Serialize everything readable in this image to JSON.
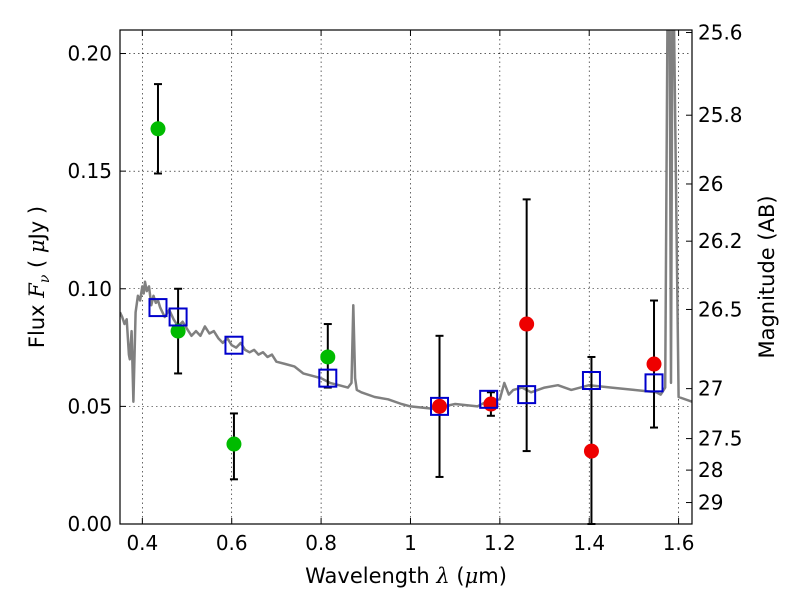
{
  "chart_data": {
    "type": "scatter",
    "xlabel_text": "Wavelength",
    "xlabel_symbol": "λ",
    "xlabel_unit_prefix": "(",
    "xlabel_unit_mu": "μ",
    "xlabel_unit_suffix": "m)",
    "ylabel_text": "Flux",
    "ylabel_symbol": "F",
    "ylabel_subscript": "ν",
    "ylabel_unit_prefix": "(",
    "ylabel_unit_mu": "μ",
    "ylabel_unit_suffix": "Jy )",
    "y2label": "Magnitude (AB)",
    "xlim": [
      0.35,
      1.63
    ],
    "ylim": [
      0.0,
      0.21
    ],
    "grid": true,
    "x_ticks": [
      {
        "value": 0.4,
        "label": "0.4"
      },
      {
        "value": 0.6,
        "label": "0.6"
      },
      {
        "value": 0.8,
        "label": "0.8"
      },
      {
        "value": 1.0,
        "label": "1"
      },
      {
        "value": 1.2,
        "label": "1.2"
      },
      {
        "value": 1.4,
        "label": "1.4"
      },
      {
        "value": 1.6,
        "label": "1.6"
      }
    ],
    "y_ticks": [
      {
        "value": 0.0,
        "label": "0.00"
      },
      {
        "value": 0.05,
        "label": "0.05"
      },
      {
        "value": 0.1,
        "label": "0.10"
      },
      {
        "value": 0.15,
        "label": "0.15"
      },
      {
        "value": 0.2,
        "label": "0.20"
      }
    ],
    "y2_ticks": [
      {
        "value": 25.6,
        "label": "25.6"
      },
      {
        "value": 25.8,
        "label": "25.8"
      },
      {
        "value": 26.0,
        "label": "26"
      },
      {
        "value": 26.2,
        "label": "26.2"
      },
      {
        "value": 26.5,
        "label": "26.5"
      },
      {
        "value": 27.0,
        "label": "27"
      },
      {
        "value": 27.5,
        "label": "27.5"
      },
      {
        "value": 28.0,
        "label": "28"
      },
      {
        "value": 29.0,
        "label": "29"
      }
    ],
    "series": [
      {
        "marker": "filled-circle",
        "color": "#00bb00",
        "x": [
          0.435,
          0.48,
          0.605,
          0.815
        ],
        "y": [
          0.168,
          0.082,
          0.034,
          0.071
        ],
        "yerr_low": [
          0.149,
          0.064,
          0.019,
          0.058
        ],
        "yerr_high": [
          0.187,
          0.1,
          0.047,
          0.085
        ]
      },
      {
        "marker": "filled-circle",
        "color": "#ee0000",
        "x": [
          1.065,
          1.18,
          1.26,
          1.405,
          1.545
        ],
        "y": [
          0.05,
          0.051,
          0.085,
          0.031,
          0.068
        ],
        "yerr_low": [
          0.02,
          0.046,
          0.031,
          0.0,
          0.041
        ],
        "yerr_high": [
          0.08,
          0.056,
          0.138,
          0.071,
          0.095
        ]
      },
      {
        "marker": "open-square",
        "color": "#0000cc",
        "x": [
          0.435,
          0.48,
          0.605,
          0.815,
          1.065,
          1.175,
          1.26,
          1.405,
          1.545
        ],
        "y": [
          0.092,
          0.088,
          0.076,
          0.062,
          0.05,
          0.053,
          0.055,
          0.061,
          0.06
        ]
      },
      {
        "marker": "line",
        "color": "#808080",
        "x": [
          0.35,
          0.355,
          0.36,
          0.365,
          0.37,
          0.372,
          0.376,
          0.38,
          0.385,
          0.39,
          0.395,
          0.4,
          0.403,
          0.406,
          0.41,
          0.415,
          0.42,
          0.425,
          0.43,
          0.435,
          0.44,
          0.45,
          0.46,
          0.47,
          0.48,
          0.49,
          0.5,
          0.51,
          0.52,
          0.53,
          0.54,
          0.55,
          0.56,
          0.57,
          0.58,
          0.59,
          0.6,
          0.61,
          0.62,
          0.63,
          0.64,
          0.65,
          0.66,
          0.67,
          0.68,
          0.69,
          0.7,
          0.72,
          0.74,
          0.76,
          0.78,
          0.8,
          0.82,
          0.84,
          0.86,
          0.868,
          0.872,
          0.876,
          0.88,
          0.89,
          0.92,
          0.95,
          0.98,
          1.0,
          1.05,
          1.1,
          1.15,
          1.17,
          1.2,
          1.21,
          1.22,
          1.23,
          1.25,
          1.27,
          1.3,
          1.33,
          1.36,
          1.4,
          1.45,
          1.5,
          1.55,
          1.56,
          1.57,
          1.575,
          1.58,
          1.583,
          1.586,
          1.59,
          1.6,
          1.63
        ],
        "y": [
          0.09,
          0.088,
          0.085,
          0.087,
          0.072,
          0.07,
          0.082,
          0.052,
          0.09,
          0.097,
          0.095,
          0.101,
          0.098,
          0.103,
          0.099,
          0.101,
          0.093,
          0.097,
          0.094,
          0.095,
          0.092,
          0.088,
          0.091,
          0.087,
          0.084,
          0.086,
          0.083,
          0.08,
          0.082,
          0.08,
          0.084,
          0.081,
          0.082,
          0.079,
          0.077,
          0.079,
          0.076,
          0.075,
          0.077,
          0.074,
          0.073,
          0.074,
          0.072,
          0.073,
          0.071,
          0.072,
          0.069,
          0.068,
          0.067,
          0.064,
          0.063,
          0.062,
          0.06,
          0.059,
          0.058,
          0.06,
          0.093,
          0.062,
          0.057,
          0.056,
          0.054,
          0.053,
          0.051,
          0.05,
          0.049,
          0.051,
          0.05,
          0.052,
          0.053,
          0.06,
          0.055,
          0.057,
          0.058,
          0.056,
          0.058,
          0.059,
          0.057,
          0.059,
          0.058,
          0.057,
          0.056,
          0.055,
          0.058,
          0.21,
          0.21,
          0.06,
          0.21,
          0.21,
          0.054,
          0.052
        ]
      }
    ]
  }
}
